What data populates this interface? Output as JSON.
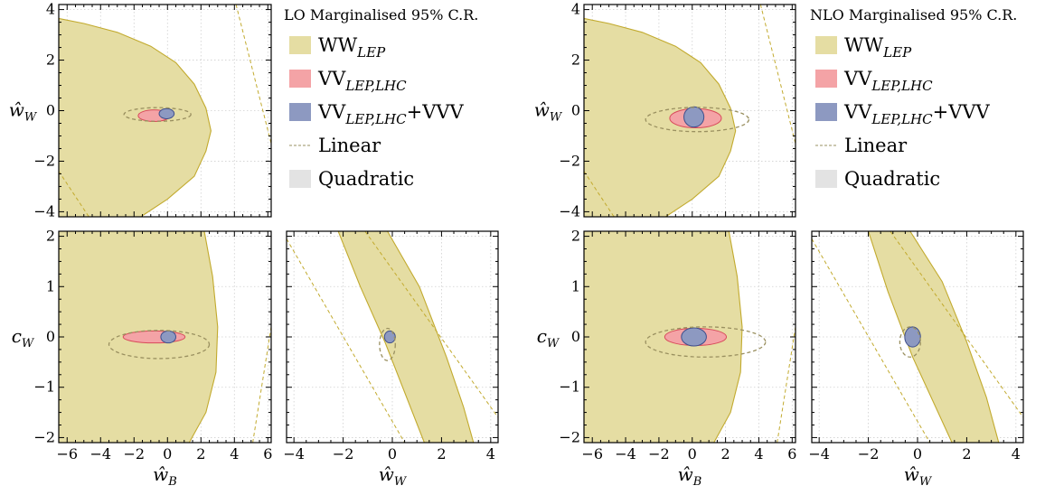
{
  "colors": {
    "ww_lep": "#e5dda3",
    "ww_lep_edge": "#c2aa2e",
    "vv": "#f4a3a6",
    "vv_edge": "#d84a5a",
    "vvv": "#8d99c1",
    "vvv_edge": "#3f4f8c",
    "linear": "#9a9060",
    "quadratic": "#e3e3e3",
    "grid": "#cfcfcf"
  },
  "legends": [
    {
      "title": "LO Marginalised 95% C.R.",
      "entries": [
        {
          "key": "ww",
          "base": "WW",
          "sub": "LEP",
          "plus": ""
        },
        {
          "key": "vv",
          "base": "VV",
          "sub": "LEP,LHC",
          "plus": ""
        },
        {
          "key": "vvv",
          "base": "VV",
          "sub": "LEP,LHC",
          "plus": "+VVV"
        },
        {
          "key": "linear",
          "base": "Linear",
          "sub": "",
          "plus": ""
        },
        {
          "key": "quadratic",
          "base": "Quadratic",
          "sub": "",
          "plus": ""
        }
      ]
    },
    {
      "title": "NLO Marginalised 95% C.R.",
      "entries": [
        {
          "key": "ww",
          "base": "WW",
          "sub": "LEP",
          "plus": ""
        },
        {
          "key": "vv",
          "base": "VV",
          "sub": "LEP,LHC",
          "plus": ""
        },
        {
          "key": "vvv",
          "base": "VV",
          "sub": "LEP,LHC",
          "plus": "+VVV"
        },
        {
          "key": "linear",
          "base": "Linear",
          "sub": "",
          "plus": ""
        },
        {
          "key": "quadratic",
          "base": "Quadratic",
          "sub": "",
          "plus": ""
        }
      ]
    }
  ],
  "axis_labels": {
    "wW": {
      "base": "ŵ",
      "sub": "W"
    },
    "wB": {
      "base": "ŵ",
      "sub": "B"
    },
    "cW": {
      "base": "c",
      "sub": "W"
    }
  },
  "chart_data": [
    {
      "id": "LO-wB-wW",
      "type": "area",
      "order": "LO",
      "x": {
        "label": "",
        "lim": [
          -6.5,
          6.2
        ],
        "ticks": [
          -6,
          -4,
          -2,
          0,
          2,
          4,
          6
        ],
        "show_ticklabels": false
      },
      "y": {
        "label": "wW",
        "lim": [
          -4.2,
          4.2
        ],
        "ticks": [
          -4,
          -2,
          0,
          2,
          4
        ],
        "show_ticklabels": true
      },
      "regions": {
        "ww_quadratic": [
          [
            -6.5,
            3.65
          ],
          [
            -5,
            3.45
          ],
          [
            -3,
            3.1
          ],
          [
            -1,
            2.55
          ],
          [
            0.5,
            1.9
          ],
          [
            1.6,
            1.05
          ],
          [
            2.3,
            0.1
          ],
          [
            2.6,
            -0.8
          ],
          [
            2.3,
            -1.6
          ],
          [
            1.6,
            -2.6
          ],
          [
            0,
            -3.5
          ],
          [
            -1.6,
            -4.2
          ],
          [
            -6.5,
            -4.2
          ]
        ],
        "ww_linear": [
          [
            [
              -6.5,
              -2.4
            ],
            [
              -4.7,
              -4.2
            ]
          ],
          [
            [
              4.1,
              4.2
            ],
            [
              6.2,
              -1.3
            ]
          ]
        ],
        "vv_quadratic": {
          "cx": -0.8,
          "cy": -0.2,
          "rx": 0.95,
          "ry": 0.23
        },
        "vv_linear": {
          "cx": -0.6,
          "cy": -0.15,
          "rx": 2.0,
          "ry": 0.27
        },
        "vvv_quadratic": {
          "cx": -0.05,
          "cy": -0.12,
          "rx": 0.45,
          "ry": 0.2
        }
      }
    },
    {
      "id": "LO-wB-cW",
      "type": "area",
      "order": "LO",
      "x": {
        "label": "wB",
        "lim": [
          -6.5,
          6.2
        ],
        "ticks": [
          -6,
          -4,
          -2,
          0,
          2,
          4,
          6
        ],
        "show_ticklabels": true
      },
      "y": {
        "label": "cW",
        "lim": [
          -2.1,
          2.1
        ],
        "ticks": [
          -2,
          -1,
          0,
          1,
          2
        ],
        "show_ticklabels": true
      },
      "regions": {
        "ww_quadratic": [
          [
            -6.5,
            2.1
          ],
          [
            2.2,
            2.1
          ],
          [
            2.7,
            1.2
          ],
          [
            3.0,
            0.2
          ],
          [
            2.9,
            -0.7
          ],
          [
            2.3,
            -1.5
          ],
          [
            1.3,
            -2.1
          ],
          [
            -6.5,
            -2.1
          ]
        ],
        "ww_linear": [
          [
            [
              5.1,
              -2.1
            ],
            [
              6.2,
              0.2
            ]
          ]
        ],
        "vv_quadratic": {
          "cx": -0.8,
          "cy": 0.0,
          "rx": 1.85,
          "ry": 0.12
        },
        "vv_linear": {
          "cx": -0.5,
          "cy": -0.15,
          "rx": 3.0,
          "ry": 0.28
        },
        "vvv_quadratic": {
          "cx": 0.05,
          "cy": 0.0,
          "rx": 0.45,
          "ry": 0.12
        }
      }
    },
    {
      "id": "LO-wW-cW",
      "type": "area",
      "order": "LO",
      "x": {
        "label": "wW",
        "lim": [
          -4.3,
          4.3
        ],
        "ticks": [
          -4,
          -2,
          0,
          2,
          4
        ],
        "show_ticklabels": true
      },
      "y": {
        "label": "",
        "lim": [
          -2.1,
          2.1
        ],
        "ticks": [
          -2,
          -1,
          0,
          1,
          2
        ],
        "show_ticklabels": false
      },
      "regions": {
        "ww_quadratic": [
          [
            -2.2,
            2.1
          ],
          [
            -0.2,
            2.1
          ],
          [
            1.1,
            1.0
          ],
          [
            2.2,
            -0.4
          ],
          [
            2.9,
            -1.4
          ],
          [
            3.3,
            -2.1
          ],
          [
            1.3,
            -2.1
          ],
          [
            -0.3,
            -0.1
          ],
          [
            -1.3,
            1.0
          ]
        ],
        "ww_linear": [
          [
            [
              -4.3,
              1.95
            ],
            [
              0.5,
              -2.1
            ]
          ],
          [
            [
              -1.4,
              2.3
            ],
            [
              4.3,
              -1.6
            ]
          ]
        ],
        "vv_linear": {
          "cx": -0.2,
          "cy": -0.15,
          "rx": 0.32,
          "ry": 0.32
        },
        "vvv_quadratic": {
          "cx": -0.1,
          "cy": 0.0,
          "rx": 0.22,
          "ry": 0.12
        }
      }
    },
    {
      "id": "NLO-wB-wW",
      "type": "area",
      "order": "NLO",
      "x": {
        "label": "",
        "lim": [
          -6.5,
          6.2
        ],
        "ticks": [
          -6,
          -4,
          -2,
          0,
          2,
          4,
          6
        ],
        "show_ticklabels": false
      },
      "y": {
        "label": "wW",
        "lim": [
          -4.2,
          4.2
        ],
        "ticks": [
          -4,
          -2,
          0,
          2,
          4
        ],
        "show_ticklabels": true
      },
      "regions": {
        "ww_quadratic": [
          [
            -6.5,
            3.65
          ],
          [
            -5,
            3.45
          ],
          [
            -3,
            3.1
          ],
          [
            -1,
            2.55
          ],
          [
            0.5,
            1.9
          ],
          [
            1.6,
            1.05
          ],
          [
            2.3,
            0.1
          ],
          [
            2.6,
            -0.8
          ],
          [
            2.3,
            -1.6
          ],
          [
            1.6,
            -2.6
          ],
          [
            0,
            -3.5
          ],
          [
            -1.6,
            -4.2
          ],
          [
            -6.5,
            -4.2
          ]
        ],
        "ww_linear": [
          [
            [
              -6.5,
              -2.4
            ],
            [
              -4.7,
              -4.2
            ]
          ],
          [
            [
              4.1,
              4.2
            ],
            [
              6.2,
              -1.3
            ]
          ]
        ],
        "vv_quadratic": {
          "cx": 0.2,
          "cy": -0.3,
          "rx": 1.55,
          "ry": 0.38
        },
        "vv_linear": {
          "cx": 0.3,
          "cy": -0.35,
          "rx": 3.1,
          "ry": 0.48
        },
        "vvv_quadratic": {
          "cx": 0.1,
          "cy": -0.25,
          "rx": 0.6,
          "ry": 0.4
        }
      }
    },
    {
      "id": "NLO-wB-cW",
      "type": "area",
      "order": "NLO",
      "x": {
        "label": "wB",
        "lim": [
          -6.5,
          6.2
        ],
        "ticks": [
          -6,
          -4,
          -2,
          0,
          2,
          4,
          6
        ],
        "show_ticklabels": true
      },
      "y": {
        "label": "cW",
        "lim": [
          -2.1,
          2.1
        ],
        "ticks": [
          -2,
          -1,
          0,
          1,
          2
        ],
        "show_ticklabels": true
      },
      "regions": {
        "ww_quadratic": [
          [
            -6.5,
            2.1
          ],
          [
            2.2,
            2.1
          ],
          [
            2.7,
            1.2
          ],
          [
            3.0,
            0.2
          ],
          [
            2.9,
            -0.7
          ],
          [
            2.3,
            -1.5
          ],
          [
            1.3,
            -2.1
          ],
          [
            -6.5,
            -2.1
          ]
        ],
        "ww_linear": [
          [
            [
              5.1,
              -2.1
            ],
            [
              6.2,
              0.2
            ]
          ]
        ],
        "vv_quadratic": {
          "cx": 0.2,
          "cy": 0.0,
          "rx": 1.85,
          "ry": 0.17
        },
        "vv_linear": {
          "cx": 0.8,
          "cy": -0.1,
          "rx": 3.6,
          "ry": 0.3
        },
        "vvv_quadratic": {
          "cx": 0.1,
          "cy": 0.0,
          "rx": 0.75,
          "ry": 0.18
        }
      }
    },
    {
      "id": "NLO-wW-cW",
      "type": "area",
      "order": "NLO",
      "x": {
        "label": "wW",
        "lim": [
          -4.3,
          4.3
        ],
        "ticks": [
          -4,
          -2,
          0,
          2,
          4
        ],
        "show_ticklabels": true
      },
      "y": {
        "label": "",
        "lim": [
          -2.1,
          2.1
        ],
        "ticks": [
          -2,
          -1,
          0,
          1,
          2
        ],
        "show_ticklabels": false
      },
      "regions": {
        "ww_quadratic": [
          [
            -2.0,
            2.1
          ],
          [
            -0.3,
            2.1
          ],
          [
            1.0,
            1.1
          ],
          [
            2.0,
            -0.1
          ],
          [
            2.8,
            -1.2
          ],
          [
            3.3,
            -2.1
          ],
          [
            1.4,
            -2.1
          ],
          [
            -0.2,
            -0.4
          ],
          [
            -1.2,
            0.9
          ]
        ],
        "ww_linear": [
          [
            [
              -4.3,
              1.95
            ],
            [
              0.5,
              -2.1
            ]
          ],
          [
            [
              -1.4,
              2.3
            ],
            [
              4.3,
              -1.6
            ]
          ]
        ],
        "vv_linear": {
          "cx": -0.3,
          "cy": -0.1,
          "rx": 0.42,
          "ry": 0.3
        },
        "vvv_quadratic": {
          "cx": -0.2,
          "cy": 0.0,
          "rx": 0.32,
          "ry": 0.2
        }
      }
    }
  ]
}
